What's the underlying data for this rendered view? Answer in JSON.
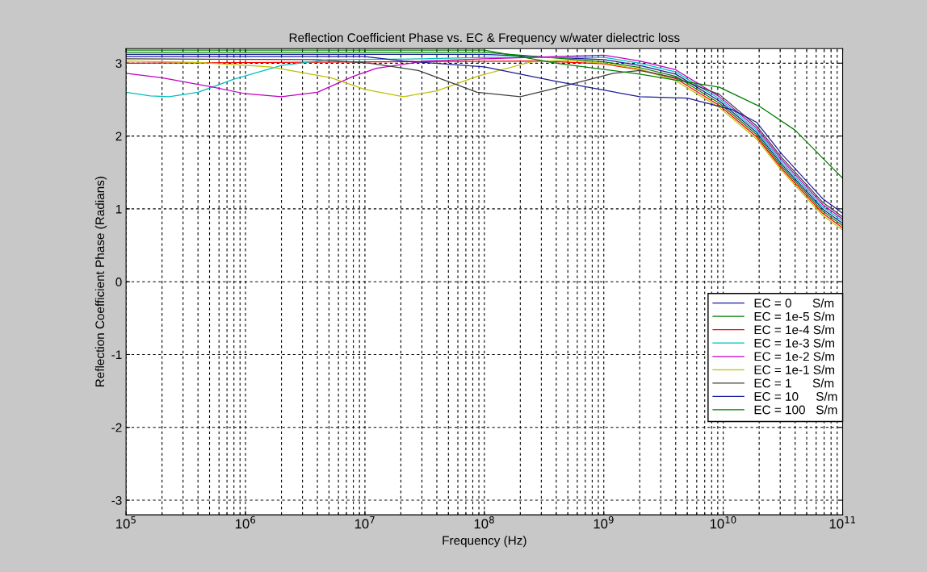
{
  "chart_data": {
    "type": "line",
    "title": "Reflection Coefficient Phase vs. EC & Frequency w/water dielectric loss",
    "xlabel": "Frequency (Hz)",
    "ylabel": "Reflection Coefficient Phase (Radians)",
    "log": "x",
    "grid": true,
    "legend": "bottom right",
    "line_style": "solid",
    "marker": "none",
    "xlim": [
      100000,
      100000000000
    ],
    "xticks": [
      {
        "value": 100000,
        "label": "10$^{5}$"
      },
      {
        "value": 1000000,
        "label": "10$^{6}$"
      },
      {
        "value": 10000000,
        "label": "10$^{7}$"
      },
      {
        "value": 100000000,
        "label": "10$^{8}$"
      },
      {
        "value": 1000000000,
        "label": "10$^{9}$"
      },
      {
        "value": 10000000000,
        "label": "10$^{10}$"
      },
      {
        "value": 100000000000,
        "label": "10$^{11}$"
      }
    ],
    "ylim": [
      -3.2,
      3.2
    ],
    "yticks": [
      -3,
      -2,
      -1,
      0,
      1,
      2,
      3
    ],
    "series": [
      {
        "name": "EC = 0      S/m",
        "color": "#1c1c9a",
        "x": [
          100000.0,
          100000000.0,
          1000000000.0,
          2000000000.0,
          4000000000.0,
          9300000000.0,
          19000000000.0,
          31000000000.0,
          68000000000.0,
          100000000000.0
        ],
        "values": [
          3.12,
          3.12,
          3.05,
          2.97,
          2.85,
          2.48,
          2.05,
          1.61,
          1.0,
          0.8
        ]
      },
      {
        "name": "EC = 1e-5 S/m",
        "color": "#007f00",
        "x": [
          100000.0,
          100000000.0,
          1000000000.0,
          2000000000.0,
          4000000000.0,
          9300000000.0,
          19000000000.0,
          31000000000.0,
          68000000000.0,
          100000000000.0
        ],
        "values": [
          3.15,
          3.15,
          3.02,
          2.94,
          2.82,
          2.45,
          2.02,
          1.58,
          0.97,
          0.77
        ]
      },
      {
        "name": "EC = 1e-4 S/m",
        "color": "#ff0000",
        "x": [
          100000.0,
          300000000.0,
          1000000000.0,
          2000000000.0,
          4000000000.0,
          9300000000.0,
          19000000000.0,
          31000000000.0,
          68000000000.0,
          100000000000.0
        ],
        "values": [
          3.0,
          3.03,
          2.99,
          2.91,
          2.79,
          2.42,
          1.99,
          1.55,
          0.94,
          0.74
        ]
      },
      {
        "name": "EC = 1e-3 S/m",
        "color": "#00bfbf",
        "x": [
          100000.0,
          160000.0,
          230000.0,
          400000.0,
          800000.0,
          2000000.0,
          5000000.0,
          30000000.0,
          100000000.0,
          1000000000.0,
          2000000000.0,
          4000000000.0,
          9300000000.0,
          19000000000.0,
          31000000000.0,
          68000000000.0,
          100000000000.0
        ],
        "values": [
          2.6,
          2.55,
          2.54,
          2.6,
          2.78,
          2.97,
          3.05,
          3.06,
          3.08,
          3.08,
          3.0,
          2.88,
          2.51,
          2.08,
          1.64,
          1.03,
          0.83
        ]
      },
      {
        "name": "EC = 1e-2 S/m",
        "color": "#bf00bf",
        "x": [
          100000.0,
          200000.0,
          500000.0,
          1000000.0,
          2000000.0,
          4000000.0,
          8000000.0,
          12500000.0,
          32000000.0,
          100000000.0,
          1000000000.0,
          2000000000.0,
          4000000000.0,
          9300000000.0,
          19000000000.0,
          31000000000.0,
          68000000000.0,
          100000000000.0
        ],
        "values": [
          2.86,
          2.8,
          2.68,
          2.58,
          2.54,
          2.6,
          2.82,
          2.93,
          3.03,
          3.06,
          3.11,
          3.03,
          2.91,
          2.54,
          2.11,
          1.67,
          1.06,
          0.86
        ]
      },
      {
        "name": "EC = 1e-1 S/m",
        "color": "#bfbf00",
        "x": [
          100000.0,
          400000.0,
          1600000.0,
          5200000.0,
          10000000.0,
          21000000.0,
          40000000.0,
          87000000.0,
          250000000.0,
          500000000.0,
          1000000000.0,
          2000000000.0,
          4000000000.0,
          9300000000.0,
          19000000000.0,
          31000000000.0,
          68000000000.0,
          100000000000.0
        ],
        "values": [
          3.03,
          3.01,
          2.95,
          2.8,
          2.64,
          2.54,
          2.62,
          2.82,
          3.02,
          3.04,
          3.0,
          2.92,
          2.76,
          2.39,
          1.96,
          1.52,
          0.91,
          0.71
        ]
      },
      {
        "name": "EC = 1      S/m",
        "color": "#404040",
        "x": [
          100000.0,
          4000000.0,
          11000000.0,
          28000000.0,
          87000000.0,
          200000000.0,
          400000000.0,
          1200000000.0,
          2000000000.0,
          4000000000.0,
          9300000000.0,
          19000000000.0,
          31000000000.0,
          68000000000.0,
          100000000000.0
        ],
        "values": [
          3.06,
          3.05,
          3.0,
          2.9,
          2.6,
          2.54,
          2.66,
          2.86,
          2.9,
          2.8,
          2.57,
          2.14,
          1.7,
          1.09,
          0.89
        ]
      },
      {
        "name": "EC = 10     S/m",
        "color": "#1c1c9a",
        "x": [
          100000.0,
          10000000.0,
          21000000.0,
          100000000.0,
          400000000.0,
          2000000000.0,
          5000000000.0,
          12000000000.0,
          19000000000.0,
          31000000000.0,
          68000000000.0,
          100000000000.0
        ],
        "values": [
          3.09,
          3.09,
          3.03,
          2.95,
          2.75,
          2.54,
          2.52,
          2.36,
          2.19,
          1.75,
          1.14,
          0.94
        ]
      },
      {
        "name": "EC = 100   S/m",
        "color": "#007f00",
        "x": [
          100000.0,
          100000000.0,
          400000000.0,
          2000000000.0,
          9300000000.0,
          20000000000.0,
          40000000000.0,
          100000000000.0
        ],
        "values": [
          3.18,
          3.18,
          3.0,
          2.85,
          2.67,
          2.41,
          2.08,
          1.42
        ]
      }
    ]
  }
}
